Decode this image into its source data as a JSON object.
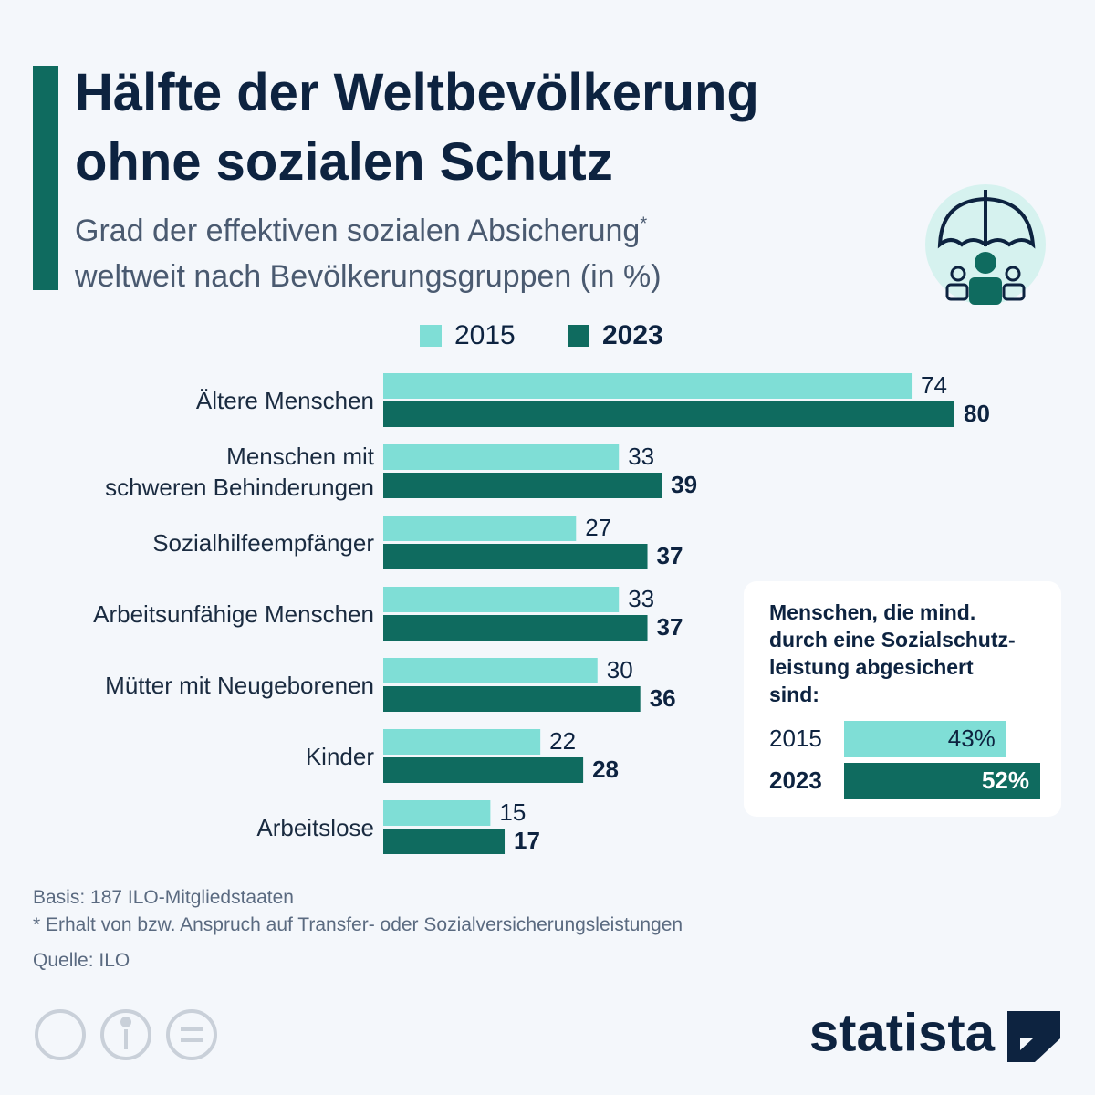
{
  "header": {
    "title": "Hälfte der Weltbevölkerung\nohne sozialen Schutz",
    "subtitle": [
      "Grad der effektiven sozialen Absicherung",
      "weltweit nach Bevölkerungsgruppen (in %)"
    ],
    "subtitle_mark": "*"
  },
  "chart_data": [
    {
      "type": "bar",
      "orientation": "horizontal",
      "categories": [
        "Ältere Menschen",
        "Menschen mit\nschweren Behinderungen",
        "Sozialhilfeempfänger",
        "Arbeitsunfähige Menschen",
        "Mütter mit Neugeborenen",
        "Kinder",
        "Arbeitslose"
      ],
      "series": [
        {
          "name": "2015",
          "color": "#7fded6",
          "values": [
            74,
            33,
            27,
            33,
            30,
            22,
            15
          ]
        },
        {
          "name": "2023",
          "color": "#0f6b5f",
          "values": [
            80,
            39,
            37,
            37,
            36,
            28,
            17
          ]
        }
      ]
    },
    {
      "type": "bar",
      "orientation": "horizontal",
      "title": "Menschen, die mind.\ndurch eine Sozialschutz-\nleistung abgesichert\nsind:",
      "categories": [
        "2015",
        "2023"
      ],
      "values": [
        43,
        52
      ],
      "value_labels": [
        "43%",
        "52%"
      ],
      "colors": [
        "#7fded6",
        "#0f6b5f"
      ]
    }
  ],
  "footer": {
    "basis": "Basis: 187 ILO-Mitgliedstaaten",
    "note": "* Erhalt von bzw. Anspruch auf Transfer- oder Sozialversicherungsleistungen",
    "source": "Quelle: ILO",
    "brand": "statista"
  }
}
